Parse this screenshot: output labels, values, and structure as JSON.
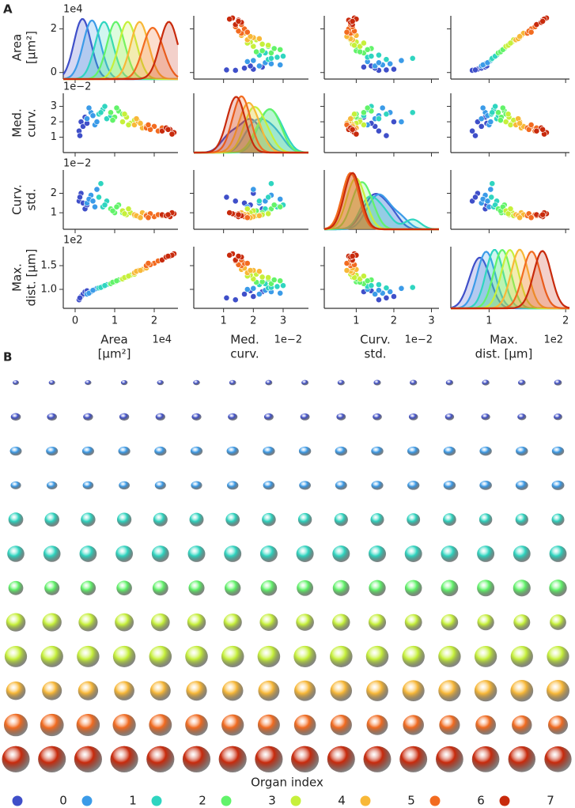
{
  "chart_data": {
    "type": "pairplot",
    "panel_labels": [
      "A",
      "B"
    ],
    "variables": [
      {
        "label": [
          "Area",
          "[µm²]"
        ],
        "exponent": "1e4",
        "lim": [
          -0.3,
          2.6
        ],
        "ticks": [
          0,
          1,
          2
        ],
        "yticks": [
          0,
          2
        ]
      },
      {
        "label": [
          "Med.",
          "curv."
        ],
        "exponent": "1e−2",
        "lim": [
          0,
          3.85
        ],
        "ticks": [
          1,
          2,
          3
        ],
        "yticks": [
          1,
          2,
          3
        ]
      },
      {
        "label": [
          "Curv.",
          "std."
        ],
        "exponent": "1e−2",
        "lim": [
          0.15,
          3.2
        ],
        "ticks": [
          1,
          2,
          3
        ],
        "yticks": [
          1,
          2
        ]
      },
      {
        "label": [
          "Max.",
          "dist. [µm]"
        ],
        "exponent": "1e2",
        "lim": [
          0.5,
          2.05
        ],
        "ticks": [
          1,
          2
        ],
        "ylim": [
          0.6,
          1.9
        ],
        "yticks": [
          {
            "value": 1,
            "label": "1.0"
          },
          {
            "value": 1.5,
            "label": "1.5"
          }
        ]
      }
    ],
    "legend_title": "Organ index",
    "series": [
      {
        "name": "0",
        "color": "#3f4fc9",
        "points": [
          [
            0.1,
            1.4,
            1.6,
            0.78
          ],
          [
            0.15,
            2.0,
            2.0,
            0.85
          ],
          [
            0.2,
            1.7,
            1.5,
            0.9
          ],
          [
            0.25,
            2.3,
            1.2,
            0.95
          ],
          [
            0.12,
            1.1,
            1.8,
            0.82
          ],
          [
            0.3,
            1.9,
            1.4,
            0.97
          ]
        ]
      },
      {
        "name": "1",
        "color": "#3b9be8",
        "points": [
          [
            0.3,
            2.2,
            1.5,
            0.9
          ],
          [
            0.4,
            2.6,
            1.9,
            0.95
          ],
          [
            0.5,
            1.8,
            1.3,
            1.0
          ],
          [
            0.35,
            2.9,
            1.7,
            0.92
          ],
          [
            0.55,
            2.0,
            2.2,
            1.02
          ],
          [
            0.45,
            2.4,
            1.6,
            0.98
          ]
        ]
      },
      {
        "name": "2",
        "color": "#2fd5c0",
        "points": [
          [
            0.6,
            2.5,
            1.8,
            1.03
          ],
          [
            0.7,
            2.8,
            1.3,
            1.06
          ],
          [
            0.8,
            2.2,
            1.6,
            1.1
          ],
          [
            0.65,
            2.6,
            2.5,
            1.04
          ],
          [
            0.9,
            2.4,
            1.2,
            1.12
          ],
          [
            0.75,
            3.0,
            1.4,
            1.08
          ]
        ]
      },
      {
        "name": "3",
        "color": "#62f36a",
        "points": [
          [
            0.9,
            2.6,
            1.2,
            1.12
          ],
          [
            1.0,
            2.3,
            1.0,
            1.16
          ],
          [
            1.1,
            2.7,
            1.4,
            1.2
          ],
          [
            0.95,
            2.1,
            1.1,
            1.15
          ],
          [
            1.2,
            2.5,
            1.0,
            1.22
          ],
          [
            1.05,
            2.9,
            1.3,
            1.18
          ]
        ]
      },
      {
        "name": "4",
        "color": "#c6f03b",
        "points": [
          [
            1.2,
            2.0,
            1.1,
            1.22
          ],
          [
            1.3,
            2.3,
            0.9,
            1.26
          ],
          [
            1.4,
            1.9,
            1.0,
            1.3
          ],
          [
            1.25,
            2.5,
            0.95,
            1.25
          ],
          [
            1.5,
            2.1,
            0.85,
            1.32
          ],
          [
            1.35,
            1.8,
            1.2,
            1.28
          ]
        ]
      },
      {
        "name": "5",
        "color": "#f8b838",
        "points": [
          [
            1.5,
            1.8,
            0.9,
            1.35
          ],
          [
            1.6,
            2.0,
            0.8,
            1.4
          ],
          [
            1.7,
            1.6,
            1.0,
            1.42
          ],
          [
            1.55,
            2.2,
            0.85,
            1.38
          ],
          [
            1.8,
            1.7,
            0.9,
            1.45
          ],
          [
            1.65,
            1.9,
            0.75,
            1.4
          ]
        ]
      },
      {
        "name": "6",
        "color": "#f26b20",
        "points": [
          [
            1.8,
            1.6,
            0.85,
            1.5
          ],
          [
            2.0,
            1.7,
            0.8,
            1.55
          ],
          [
            1.9,
            1.5,
            0.95,
            1.52
          ],
          [
            2.1,
            1.4,
            0.9,
            1.6
          ],
          [
            1.85,
            1.8,
            0.75,
            1.55
          ],
          [
            2.2,
            1.6,
            0.85,
            1.62
          ]
        ]
      },
      {
        "name": "7",
        "color": "#c82a0c",
        "points": [
          [
            2.2,
            1.4,
            0.9,
            1.62
          ],
          [
            2.4,
            1.5,
            0.8,
            1.7
          ],
          [
            2.5,
            1.3,
            0.95,
            1.75
          ],
          [
            2.3,
            1.6,
            0.85,
            1.68
          ],
          [
            2.45,
            1.2,
            1.0,
            1.72
          ],
          [
            2.35,
            1.5,
            0.9,
            1.7
          ]
        ]
      }
    ]
  },
  "organ_grid": {
    "row_classes": [
      0,
      0,
      1,
      1,
      2,
      2,
      3,
      4,
      4,
      5,
      6,
      7
    ]
  }
}
